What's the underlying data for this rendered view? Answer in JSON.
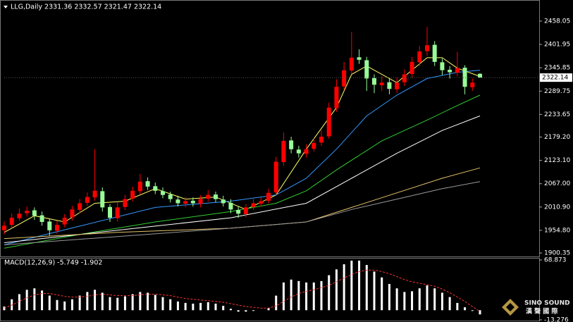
{
  "chart_data": [
    {
      "type": "candlestick",
      "title": "LLG,Daily  2331.36 2332.57 2321.47 2322.14",
      "up_color": "#ff0000",
      "down_color": "#98fb98",
      "open": [
        1955,
        1968,
        1984,
        1996,
        2003,
        1991,
        1976,
        1954,
        1969,
        1986,
        2004,
        2021,
        2034,
        2049,
        2011,
        1984,
        2011,
        2031,
        2049,
        2073,
        2061,
        2049,
        2041,
        2029,
        2019,
        2026,
        2019,
        2031,
        2041,
        2029,
        2021,
        2004,
        1994,
        2011,
        2019,
        2026,
        2046,
        2119,
        2171,
        2149,
        2139,
        2151,
        2166,
        2181,
        2249,
        2301,
        2339,
        2371,
        2364,
        2321,
        2304,
        2311,
        2294,
        2311,
        2331,
        2359,
        2386,
        2401,
        2359,
        2341,
        2334,
        2346,
        2299,
        2331.36
      ],
      "high": [
        1976,
        1995,
        2008,
        2012,
        2010,
        2000,
        1982,
        1978,
        1994,
        2014,
        2030,
        2046,
        2150,
        2058,
        2018,
        2022,
        2040,
        2060,
        2090,
        2082,
        2070,
        2058,
        2048,
        2038,
        2035,
        2034,
        2040,
        2052,
        2048,
        2038,
        2030,
        2012,
        2018,
        2030,
        2034,
        2055,
        2132,
        2190,
        2180,
        2158,
        2162,
        2176,
        2195,
        2262,
        2318,
        2360,
        2432,
        2390,
        2372,
        2330,
        2325,
        2320,
        2322,
        2342,
        2372,
        2398,
        2444,
        2410,
        2368,
        2350,
        2384,
        2352,
        2320,
        2332.57
      ],
      "low": [
        1945,
        1960,
        1978,
        1988,
        1980,
        1966,
        1942,
        1946,
        1962,
        1978,
        1996,
        2014,
        2026,
        2000,
        1975,
        1976,
        2004,
        2024,
        2042,
        2052,
        2042,
        2032,
        2022,
        2012,
        2010,
        2012,
        2010,
        2024,
        2022,
        2012,
        1996,
        1985,
        1986,
        2004,
        2012,
        2020,
        2040,
        2110,
        2140,
        2130,
        2130,
        2144,
        2158,
        2175,
        2240,
        2292,
        2330,
        2355,
        2290,
        2285,
        2290,
        2282,
        2285,
        2302,
        2322,
        2350,
        2375,
        2350,
        2328,
        2320,
        2325,
        2282,
        2290,
        2321.47
      ],
      "close": [
        1966,
        1985,
        1995,
        2002,
        1990,
        1975,
        1955,
        1968,
        1985,
        2005,
        2020,
        2035,
        2050,
        2010,
        1985,
        2010,
        2030,
        2050,
        2072,
        2060,
        2050,
        2040,
        2030,
        2020,
        2025,
        2020,
        2030,
        2040,
        2030,
        2020,
        2005,
        1995,
        2010,
        2020,
        2025,
        2045,
        2120,
        2170,
        2150,
        2140,
        2150,
        2165,
        2180,
        2250,
        2300,
        2340,
        2370,
        2365,
        2320,
        2305,
        2310,
        2295,
        2310,
        2330,
        2360,
        2385,
        2400,
        2360,
        2340,
        2335,
        2345,
        2300,
        2310,
        2322.14
      ],
      "last_price": 2322.14,
      "moving_averages": [
        {
          "color": "#ffff66",
          "x": [
            0,
            4,
            8,
            12,
            16,
            20,
            24,
            28,
            32,
            36,
            40,
            44,
            46,
            48,
            52,
            56,
            58,
            60,
            63
          ],
          "values": [
            1950,
            1990,
            1975,
            2020,
            2025,
            2055,
            2030,
            2035,
            2005,
            2040,
            2150,
            2250,
            2330,
            2350,
            2310,
            2370,
            2370,
            2345,
            2325
          ]
        },
        {
          "color": "#3399ff",
          "x": [
            0,
            10,
            20,
            30,
            36,
            40,
            44,
            48,
            52,
            56,
            60,
            63
          ],
          "values": [
            1920,
            1965,
            2010,
            2025,
            2040,
            2080,
            2150,
            2230,
            2280,
            2320,
            2335,
            2340
          ]
        },
        {
          "color": "#33cc33",
          "x": [
            0,
            10,
            20,
            30,
            36,
            40,
            44,
            50,
            56,
            60,
            63
          ],
          "values": [
            1912,
            1945,
            1975,
            2000,
            2020,
            2050,
            2100,
            2170,
            2220,
            2255,
            2280
          ]
        },
        {
          "color": "#ffffff",
          "x": [
            0,
            10,
            20,
            30,
            40,
            46,
            52,
            58,
            63
          ],
          "values": [
            1925,
            1945,
            1965,
            1985,
            2020,
            2080,
            2140,
            2195,
            2230
          ]
        },
        {
          "color": "#e6c36a",
          "x": [
            0,
            15,
            30,
            40,
            46,
            52,
            58,
            63
          ],
          "values": [
            1935,
            1950,
            1960,
            1975,
            2010,
            2045,
            2080,
            2105
          ]
        },
        {
          "color": "#999999",
          "x": [
            0,
            15,
            30,
            40,
            46,
            52,
            58,
            63
          ],
          "values": [
            1920,
            1940,
            1960,
            1975,
            2005,
            2030,
            2055,
            2072
          ]
        }
      ],
      "ylim": [
        1892,
        2502
      ],
      "yticks": [
        2458.05,
        2401.95,
        2345.85,
        2289.75,
        2233.65,
        {
          "value": 2179.2,
          "label": "2179.20"
        },
        {
          "value": 2123.1,
          "label": "2123.10"
        },
        {
          "value": 2067,
          "label": "2067.00"
        },
        {
          "value": 2010.9,
          "label": "2010.90"
        },
        {
          "value": 1954.8,
          "label": "1954.80"
        },
        1900.35
      ]
    },
    {
      "type": "macd",
      "title": "MACD(12,26,9) -5.749 -1.902",
      "histogram_color": "#ffffff",
      "signal_color": "#ff3333",
      "histogram": [
        5,
        15,
        22,
        28,
        30,
        27,
        20,
        14,
        12,
        15,
        20,
        25,
        28,
        24,
        18,
        17,
        19,
        22,
        25,
        24,
        21,
        18,
        15,
        12,
        10,
        9,
        10,
        11,
        9,
        6,
        2,
        -2,
        -2,
        -1,
        0,
        3,
        20,
        38,
        42,
        40,
        38,
        38,
        40,
        48,
        56,
        63,
        68,
        68,
        62,
        53,
        45,
        36,
        30,
        25,
        26,
        30,
        34,
        30,
        24,
        18,
        10,
        4,
        -1,
        -5.749
      ],
      "signal": [
        3,
        7,
        12,
        17,
        21,
        23,
        23,
        21,
        19,
        18,
        18,
        19,
        21,
        22,
        21,
        20,
        20,
        20,
        21,
        22,
        22,
        21,
        20,
        18,
        16,
        15,
        14,
        13,
        12,
        11,
        9,
        7,
        5,
        4,
        3,
        3,
        6,
        12,
        18,
        23,
        26,
        28,
        31,
        34,
        39,
        44,
        49,
        53,
        55,
        55,
        53,
        50,
        46,
        42,
        39,
        37,
        35,
        33,
        29,
        24,
        18,
        12,
        5,
        -1.902
      ],
      "ylim": [
        -13.276,
        68.873
      ],
      "yticks": [
        68.873,
        -13.276
      ]
    }
  ],
  "watermark": {
    "brand": "SINO SOUND",
    "subtitle": "漢 聲 國 際"
  }
}
